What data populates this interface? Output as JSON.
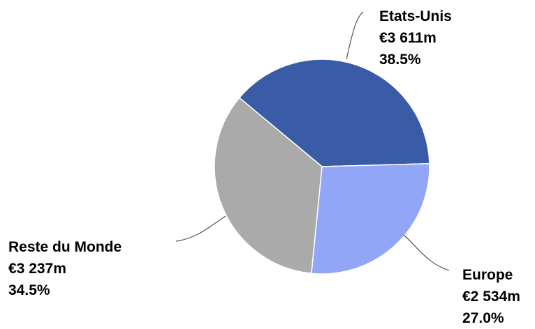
{
  "chart_data": {
    "type": "pie",
    "title": "",
    "slices": [
      {
        "label": "Etats-Unis",
        "value": 3611,
        "value_text": "€3 611m",
        "percent": 38.5,
        "percent_text": "38.5%",
        "color": "#3A5BA6"
      },
      {
        "label": "Europe",
        "value": 2534,
        "value_text": "€2 534m",
        "percent": 27.0,
        "percent_text": "27.0%",
        "color": "#92A6F7"
      },
      {
        "label": "Reste du Monde",
        "value": 3237,
        "value_text": "€3 237m",
        "percent": 34.5,
        "percent_text": "34.5%",
        "color": "#AAAAAA"
      }
    ],
    "legend": "none",
    "label_style": "outside with leader lines"
  }
}
